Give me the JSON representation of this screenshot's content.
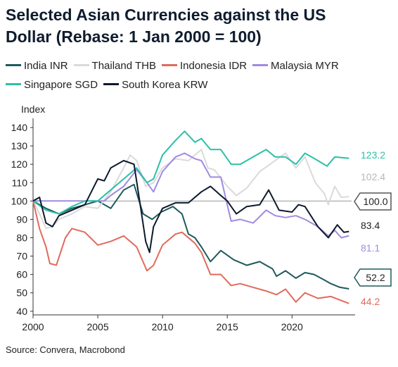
{
  "title": "Selected Asian Currencies against the US Dollar (Rebase: 1 Jan 2000 = 100)",
  "source": "Source: Convera, Macrobond",
  "chart_data": {
    "type": "line",
    "ylabel": "Index",
    "xlabel": "",
    "xlim": [
      2000,
      2024.6
    ],
    "ylim": [
      38,
      145
    ],
    "x_ticks": [
      "2000",
      "2005",
      "2010",
      "2015",
      "2020"
    ],
    "y_ticks": [
      "40",
      "50",
      "60",
      "70",
      "80",
      "90",
      "100",
      "110",
      "120",
      "130",
      "140"
    ],
    "reference_line": {
      "y": 100,
      "label": "100.0"
    },
    "grid": false,
    "legend_position": "top",
    "series": [
      {
        "name": "India INR",
        "color": "#1e5a5c",
        "end_label": "52.2",
        "end_label_boxed": true,
        "x": [
          2000,
          2001,
          2002,
          2003,
          2004,
          2005,
          2006,
          2007,
          2007.8,
          2008.5,
          2009.2,
          2009.9,
          2010.8,
          2011.5,
          2012,
          2012.5,
          2013,
          2013.7,
          2014.5,
          2015.5,
          2016.5,
          2017.5,
          2018.5,
          2018.8,
          2019.5,
          2020.3,
          2021,
          2021.7,
          2022.5,
          2023,
          2023.7,
          2024.4
        ],
        "y": [
          100,
          96,
          93,
          96,
          98,
          100,
          96,
          106,
          109,
          93,
          90,
          94,
          97,
          93,
          82,
          80,
          75,
          67,
          73,
          68,
          65,
          67,
          63,
          59,
          62,
          58,
          61,
          60,
          57,
          55,
          53,
          52.2
        ]
      },
      {
        "name": "Thailand THB",
        "color": "#dadada",
        "end_label": "102.4",
        "end_label_boxed": false,
        "x": [
          2000,
          2000.5,
          2001,
          2001.5,
          2002,
          2003,
          2004,
          2005,
          2006,
          2007,
          2007.5,
          2008,
          2008.7,
          2009.3,
          2010,
          2011,
          2012,
          2013,
          2013.5,
          2014,
          2015,
          2015.7,
          2016.5,
          2017.5,
          2018.3,
          2019.5,
          2020.3,
          2021,
          2021.8,
          2022.5,
          2022.8,
          2023.3,
          2023.8,
          2024.4
        ],
        "y": [
          100,
          93,
          85,
          86,
          90,
          93,
          97,
          96,
          105,
          118,
          125,
          122,
          108,
          110,
          118,
          123,
          122,
          128,
          118,
          117,
          108,
          103,
          107,
          116,
          120,
          126,
          118,
          124,
          110,
          104,
          98,
          108,
          102,
          102.4
        ]
      },
      {
        "name": "Indonesia IDR",
        "color": "#e06b5c",
        "end_label": "44.2",
        "end_label_boxed": false,
        "x": [
          2000,
          2000.5,
          2001,
          2001.3,
          2001.8,
          2002.5,
          2003,
          2004,
          2005,
          2006,
          2007,
          2008,
          2008.8,
          2009.3,
          2010,
          2011,
          2011.5,
          2012.5,
          2013,
          2013.7,
          2014.5,
          2015.3,
          2016,
          2017,
          2018,
          2018.8,
          2019.5,
          2020.3,
          2021,
          2022,
          2023,
          2024.4
        ],
        "y": [
          100,
          85,
          75,
          66,
          65,
          80,
          85,
          83,
          76,
          78,
          81,
          75,
          62,
          65,
          76,
          82,
          83,
          77,
          72,
          60,
          60,
          54,
          55,
          53,
          51,
          49,
          52,
          45,
          50,
          47,
          48,
          44.2
        ]
      },
      {
        "name": "Malaysia MYR",
        "color": "#a18be0",
        "end_label": "81.1",
        "end_label_boxed": false,
        "x": [
          2000,
          2002,
          2004,
          2005.5,
          2006,
          2007,
          2008,
          2008.8,
          2009.3,
          2010,
          2011,
          2011.7,
          2012.5,
          2013,
          2013.7,
          2014.5,
          2015.3,
          2016,
          2017,
          2018,
          2018.7,
          2019.5,
          2020.3,
          2021,
          2022,
          2022.8,
          2023.3,
          2023.8,
          2024.4
        ],
        "y": [
          100,
          100,
          100,
          100,
          103,
          108,
          117,
          110,
          105,
          116,
          124,
          126,
          123,
          122,
          113,
          113,
          89,
          90,
          88,
          95,
          92,
          91,
          92,
          90,
          86,
          81,
          84,
          80,
          81.1
        ]
      },
      {
        "name": "Singapore SGD",
        "color": "#2cc0a6",
        "end_label": "123.2",
        "end_label_boxed": false,
        "x": [
          2000,
          2001,
          2002,
          2003,
          2004,
          2005,
          2006,
          2007,
          2008,
          2008.8,
          2009.3,
          2010,
          2011,
          2011.7,
          2012.5,
          2013,
          2013.7,
          2014.5,
          2015.3,
          2016,
          2017,
          2018,
          2018.7,
          2019.5,
          2020.3,
          2021,
          2022,
          2022.7,
          2023.3,
          2024.4
        ],
        "y": [
          100,
          95,
          93,
          97,
          100,
          100,
          106,
          112,
          118,
          110,
          112,
          125,
          133,
          138,
          132,
          134,
          128,
          128,
          120,
          120,
          124,
          128,
          124,
          124,
          120,
          126,
          122,
          119,
          124,
          123.2
        ]
      },
      {
        "name": "South Korea KRW",
        "color": "#0d1a2c",
        "end_label": "83.4",
        "end_label_boxed": false,
        "x": [
          2000,
          2000.5,
          2001,
          2001.5,
          2002,
          2003,
          2004,
          2005,
          2005.5,
          2006,
          2007,
          2007.8,
          2008.3,
          2008.7,
          2009,
          2009.3,
          2010,
          2011,
          2012,
          2013,
          2013.7,
          2014.5,
          2015,
          2015.7,
          2016.5,
          2017.5,
          2018.2,
          2019,
          2020,
          2020.5,
          2021,
          2022,
          2022.8,
          2023.5,
          2024,
          2024.4
        ],
        "y": [
          100,
          102,
          88,
          86,
          92,
          95,
          98,
          112,
          111,
          118,
          122,
          120,
          97,
          78,
          72,
          86,
          96,
          99,
          99,
          105,
          108,
          103,
          100,
          93,
          97,
          98,
          106,
          95,
          94,
          98,
          97,
          86,
          80,
          87,
          83,
          83.4
        ]
      }
    ]
  }
}
